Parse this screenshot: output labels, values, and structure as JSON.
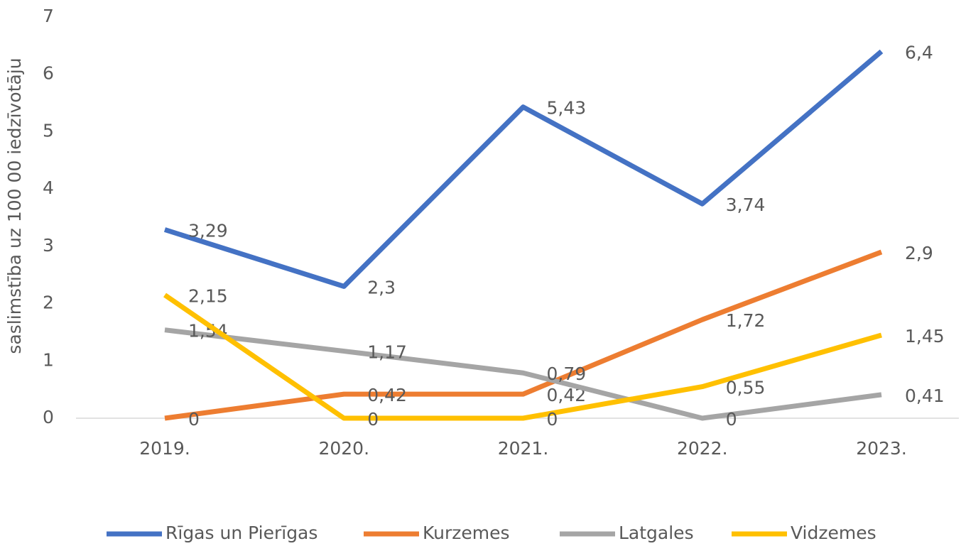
{
  "chart_data": {
    "type": "line",
    "y_axis_label": "saslimstība uz 100 00 iedzīvotāju",
    "categories": [
      "2019.",
      "2020.",
      "2021.",
      "2022.",
      "2023."
    ],
    "series": [
      {
        "name": "Rīgas un Pierīgas",
        "color": "#4472c4",
        "values": [
          3.29,
          2.3,
          5.43,
          3.74,
          6.4
        ],
        "value_labels": [
          "3,29",
          "2,3",
          "5,43",
          "3,74",
          "6,4"
        ]
      },
      {
        "name": "Kurzemes",
        "color": "#ed7d31",
        "values": [
          0,
          0.42,
          0.42,
          1.72,
          2.9
        ],
        "value_labels": [
          "0",
          "0,42",
          "0,42",
          "1,72",
          "2,9"
        ]
      },
      {
        "name": "Latgales",
        "color": "#a5a5a5",
        "values": [
          1.54,
          1.17,
          0.79,
          0,
          0.41
        ],
        "value_labels": [
          "1,54",
          "1,17",
          "0,79",
          "0",
          "0,41"
        ]
      },
      {
        "name": "Vidzemes",
        "color": "#ffc000",
        "values": [
          2.15,
          0,
          0,
          0.55,
          1.45
        ],
        "value_labels": [
          "2,15",
          "0",
          "0",
          "0,55",
          "1,45"
        ]
      }
    ],
    "ylim": [
      0,
      7
    ],
    "yticks": [
      0,
      1,
      2,
      3,
      4,
      5,
      6,
      7
    ],
    "grid": false,
    "legend": "bottom"
  }
}
